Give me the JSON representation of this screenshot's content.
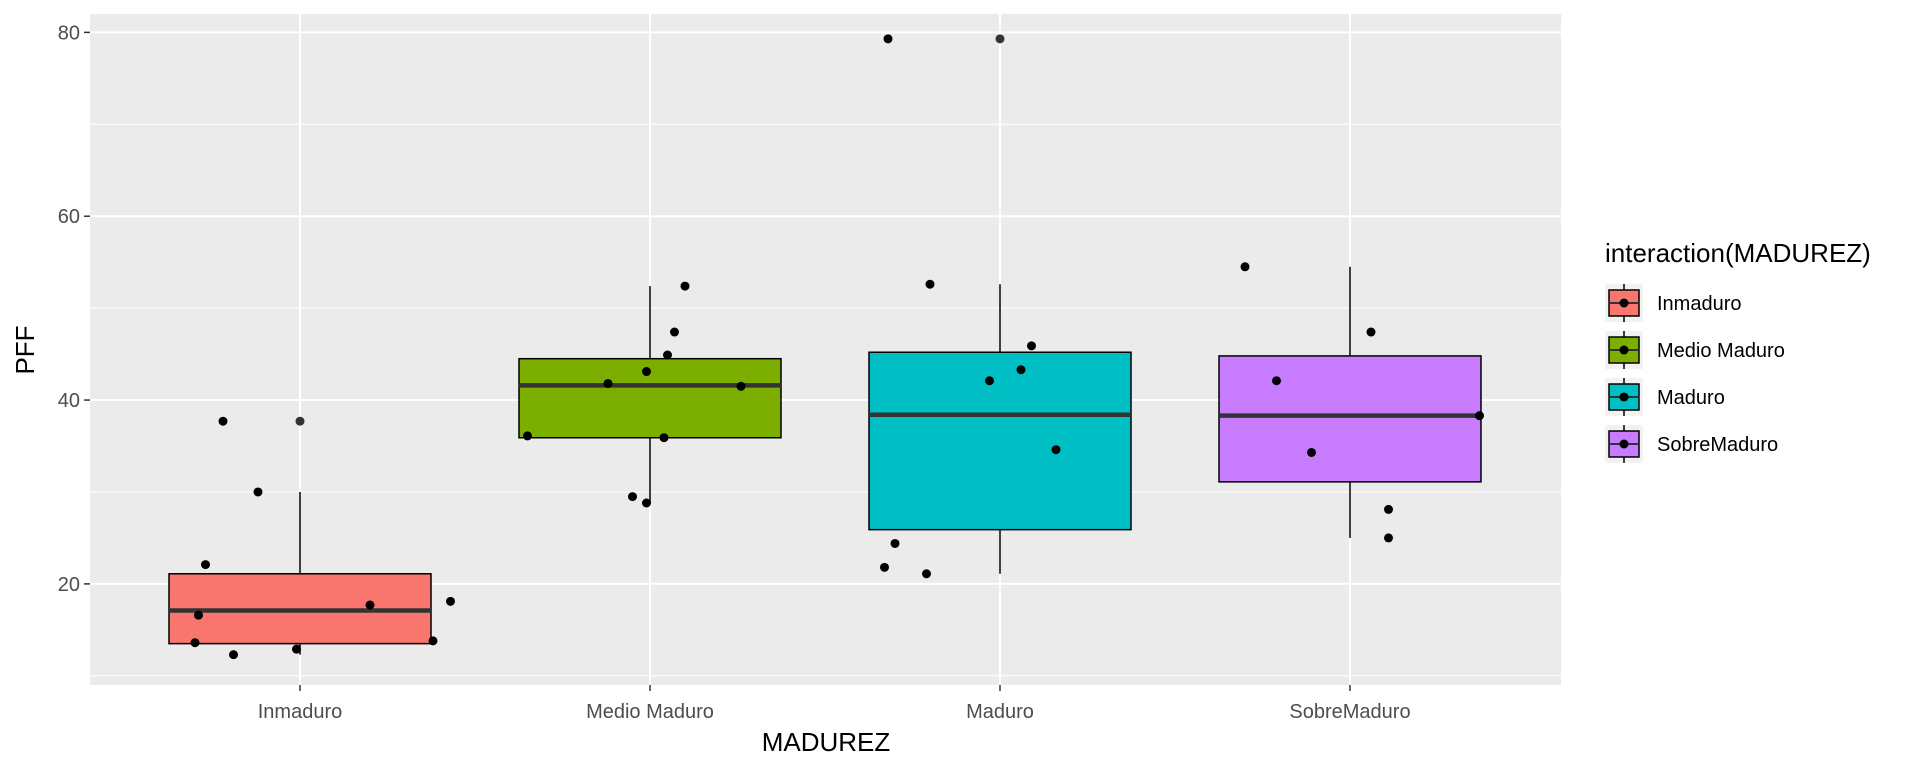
{
  "chart_data": {
    "type": "boxplot",
    "xlabel": "MADUREZ",
    "ylabel": "PFF",
    "ylim": [
      9,
      82
    ],
    "yticks": [
      20,
      40,
      60,
      80
    ],
    "grid": true,
    "legend": {
      "title": "interaction(MADUREZ)",
      "position": "right",
      "entries": [
        "Inmaduro",
        "Medio Maduro",
        "Maduro",
        "SobreMaduro"
      ]
    },
    "categories": [
      "Inmaduro",
      "Medio Maduro",
      "Maduro",
      "SobreMaduro"
    ],
    "colors": [
      "#F8766D",
      "#7CAE00",
      "#00BFC4",
      "#C77CFF"
    ],
    "boxes": [
      {
        "category": "Inmaduro",
        "whisker_low": 12.3,
        "q1": 13.5,
        "median": 17.1,
        "q3": 21.1,
        "whisker_high": 30.0,
        "outliers": [
          37.7
        ]
      },
      {
        "category": "Medio Maduro",
        "whisker_low": 28.8,
        "q1": 35.9,
        "median": 41.6,
        "q3": 44.5,
        "whisker_high": 52.4,
        "outliers": []
      },
      {
        "category": "Maduro",
        "whisker_low": 21.1,
        "q1": 25.9,
        "median": 38.4,
        "q3": 45.2,
        "whisker_high": 52.6,
        "outliers": [
          79.3
        ]
      },
      {
        "category": "SobreMaduro",
        "whisker_low": 25.0,
        "q1": 31.1,
        "median": 38.3,
        "q3": 44.8,
        "whisker_high": 54.5,
        "outliers": []
      }
    ],
    "points": [
      {
        "x": 0.7,
        "y": 13.6
      },
      {
        "x": 0.71,
        "y": 16.6
      },
      {
        "x": 0.73,
        "y": 22.1
      },
      {
        "x": 0.78,
        "y": 37.7
      },
      {
        "x": 0.81,
        "y": 12.3
      },
      {
        "x": 0.88,
        "y": 30.0
      },
      {
        "x": 0.99,
        "y": 12.9
      },
      {
        "x": 1.2,
        "y": 17.7
      },
      {
        "x": 1.38,
        "y": 13.8
      },
      {
        "x": 1.43,
        "y": 18.1
      },
      {
        "x": 1.65,
        "y": 36.1
      },
      {
        "x": 1.88,
        "y": 41.8
      },
      {
        "x": 1.95,
        "y": 29.5
      },
      {
        "x": 1.99,
        "y": 43.1
      },
      {
        "x": 1.99,
        "y": 28.8
      },
      {
        "x": 2.04,
        "y": 35.9
      },
      {
        "x": 2.05,
        "y": 44.9
      },
      {
        "x": 2.07,
        "y": 47.4
      },
      {
        "x": 2.1,
        "y": 52.4
      },
      {
        "x": 2.26,
        "y": 41.5
      },
      {
        "x": 2.67,
        "y": 21.8
      },
      {
        "x": 2.68,
        "y": 79.3
      },
      {
        "x": 2.7,
        "y": 24.4
      },
      {
        "x": 2.79,
        "y": 21.1
      },
      {
        "x": 2.8,
        "y": 52.6
      },
      {
        "x": 2.97,
        "y": 42.1
      },
      {
        "x": 3.06,
        "y": 43.3
      },
      {
        "x": 3.09,
        "y": 45.9
      },
      {
        "x": 3.16,
        "y": 34.6
      },
      {
        "x": 3.7,
        "y": 54.5
      },
      {
        "x": 3.79,
        "y": 42.1
      },
      {
        "x": 3.89,
        "y": 34.3
      },
      {
        "x": 4.06,
        "y": 47.4
      },
      {
        "x": 4.11,
        "y": 28.1
      },
      {
        "x": 4.11,
        "y": 25.0
      },
      {
        "x": 4.37,
        "y": 38.3
      }
    ]
  }
}
